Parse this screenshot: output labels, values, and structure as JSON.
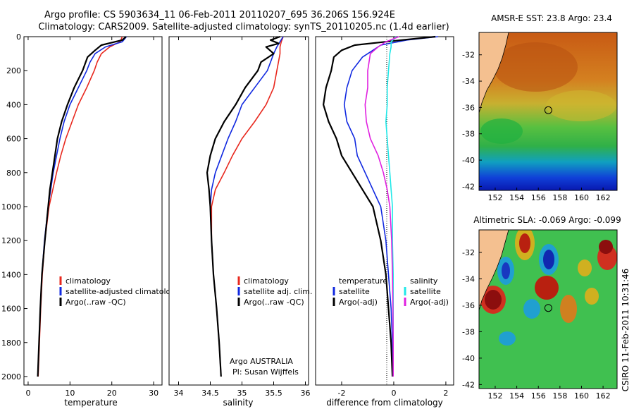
{
  "header": {
    "line1": "Argo profile: CS 5903634_11 06-Feb-2011 20110207_695 36.206S 156.924E",
    "line2": "Climatology: CARS2009. Satellite-adjusted climatology: synTS_20110205.nc (1.4d earlier)"
  },
  "side_text": "CSIRO 11-Feb-2011 10:31:46",
  "colors": {
    "climatology": "#e8281e",
    "satellite_adjusted": "#1028e0",
    "argo": "#000000",
    "salinity_satellite": "#20e8e8",
    "salinity_argo_adj": "#e020e0",
    "land": "#f4c090"
  },
  "chart_data": [
    {
      "type": "line",
      "id": "temperature",
      "xlabel": "temperature",
      "ylabel": "",
      "xlim": [
        -1,
        32
      ],
      "ylim": [
        2050,
        0
      ],
      "xticks": [
        0,
        10,
        20,
        30
      ],
      "yticks": [
        0,
        200,
        400,
        600,
        800,
        1000,
        1200,
        1400,
        1600,
        1800,
        2000
      ],
      "legend": [
        "climatology",
        "satellite-adjusted climatology",
        "Argo(..raw -QC)"
      ],
      "series": [
        {
          "name": "climatology",
          "color": "#e8281e",
          "depth": [
            0,
            30,
            60,
            100,
            150,
            200,
            300,
            400,
            500,
            600,
            700,
            800,
            1000,
            1200,
            1400,
            1600,
            1800,
            2000
          ],
          "values": [
            22.5,
            22.0,
            19.5,
            17.5,
            16.5,
            15.8,
            14.0,
            12.0,
            10.5,
            9.0,
            7.8,
            6.8,
            5.0,
            4.0,
            3.4,
            3.0,
            2.7,
            2.4
          ]
        },
        {
          "name": "satellite-adjusted climatology",
          "color": "#1028e0",
          "depth": [
            0,
            30,
            60,
            100,
            150,
            200,
            300,
            400,
            500,
            600,
            700,
            800,
            1000,
            1200,
            1400,
            1600,
            1800,
            2000
          ],
          "values": [
            23.5,
            22.5,
            18.5,
            16.0,
            14.8,
            14.0,
            12.0,
            10.0,
            8.6,
            7.6,
            6.8,
            6.0,
            4.8,
            3.9,
            3.3,
            2.9,
            2.6,
            2.3
          ]
        },
        {
          "name": "Argo(..raw -QC)",
          "color": "#000000",
          "depth": [
            0,
            20,
            50,
            80,
            120,
            200,
            300,
            400,
            500,
            600,
            700,
            800,
            900,
            1000,
            1200,
            1400,
            1600,
            1800,
            2000
          ],
          "values": [
            23.4,
            22.5,
            17.5,
            16.0,
            14.2,
            13.0,
            11.0,
            9.4,
            8.0,
            7.0,
            6.4,
            5.8,
            5.2,
            4.8,
            4.0,
            3.3,
            2.9,
            2.6,
            2.3
          ]
        }
      ]
    },
    {
      "type": "line",
      "id": "salinity",
      "xlabel": "salinity",
      "ylabel": "",
      "xlim": [
        33.85,
        36.05
      ],
      "ylim": [
        2050,
        0
      ],
      "xticks": [
        34,
        34.5,
        35,
        35.5,
        36
      ],
      "legend": [
        "climatology",
        "satellite adj. clim.",
        "Argo(..raw -QC)"
      ],
      "annotations": [
        "Argo AUSTRALIA",
        "PI: Susan Wijffels"
      ],
      "series": [
        {
          "name": "climatology",
          "color": "#e8281e",
          "depth": [
            0,
            30,
            60,
            100,
            200,
            300,
            400,
            500,
            600,
            700,
            800,
            900,
            1000,
            1200,
            1400,
            1600,
            1800,
            2000
          ],
          "values": [
            35.65,
            35.62,
            35.6,
            35.6,
            35.55,
            35.5,
            35.38,
            35.2,
            35.0,
            34.85,
            34.72,
            34.58,
            34.52,
            34.52,
            34.55,
            34.6,
            34.64,
            34.67
          ]
        },
        {
          "name": "satellite adj. clim.",
          "color": "#1028e0",
          "depth": [
            0,
            30,
            60,
            100,
            200,
            300,
            400,
            500,
            600,
            700,
            800,
            900,
            1000,
            1200,
            1400,
            1600,
            1800,
            2000
          ],
          "values": [
            35.65,
            35.6,
            35.55,
            35.5,
            35.4,
            35.2,
            35.0,
            34.9,
            34.78,
            34.68,
            34.58,
            34.52,
            34.5,
            34.52,
            34.55,
            34.6,
            34.64,
            34.67
          ]
        },
        {
          "name": "Argo(..raw -QC)",
          "color": "#000000",
          "depth": [
            0,
            20,
            40,
            60,
            100,
            150,
            200,
            300,
            400,
            500,
            600,
            700,
            800,
            900,
            1000,
            1200,
            1400,
            1600,
            1800,
            2000
          ],
          "values": [
            35.6,
            35.45,
            35.58,
            35.38,
            35.5,
            35.3,
            35.25,
            35.05,
            34.9,
            34.72,
            34.58,
            34.5,
            34.45,
            34.48,
            34.5,
            34.52,
            34.55,
            34.6,
            34.64,
            34.67
          ]
        }
      ]
    },
    {
      "type": "line",
      "id": "difference",
      "xlabel": "difference from climatology",
      "ylabel": "",
      "xlim": [
        -3.0,
        2.3
      ],
      "ylim": [
        2050,
        0
      ],
      "xticks": [
        -2,
        0,
        2
      ],
      "legend_temperature_title": "temperature",
      "legend_salinity_title": "salinity",
      "legend": [
        "satellite",
        "Argo(-adj)",
        "satellite",
        "Argo(-adj)"
      ],
      "series": [
        {
          "name": "temperature satellite",
          "color": "#1028e0",
          "depth": [
            0,
            20,
            50,
            80,
            120,
            200,
            300,
            400,
            500,
            600,
            700,
            800,
            900,
            1000,
            1200,
            1400,
            1600,
            1800,
            2000
          ],
          "values": [
            1.7,
            0.5,
            -0.5,
            -0.8,
            -1.2,
            -1.6,
            -1.8,
            -1.9,
            -1.8,
            -1.5,
            -1.4,
            -1.1,
            -0.8,
            -0.5,
            -0.3,
            -0.2,
            -0.1,
            -0.05,
            -0.05
          ]
        },
        {
          "name": "temperature Argo(-adj)",
          "color": "#000000",
          "depth": [
            0,
            20,
            50,
            80,
            120,
            200,
            300,
            400,
            500,
            600,
            700,
            800,
            900,
            1000,
            1200,
            1400,
            1600,
            1800,
            2000
          ],
          "values": [
            1.6,
            0.3,
            -1.5,
            -2.0,
            -2.3,
            -2.4,
            -2.6,
            -2.7,
            -2.5,
            -2.2,
            -2.0,
            -1.6,
            -1.2,
            -0.8,
            -0.5,
            -0.3,
            -0.2,
            -0.1,
            -0.05
          ]
        },
        {
          "name": "salinity satellite",
          "color": "#20e8e8",
          "depth": [
            0,
            30,
            60,
            100,
            200,
            300,
            400,
            500,
            600,
            700,
            800,
            900,
            1000,
            1200,
            1400,
            1600,
            1800,
            2000
          ],
          "values": [
            0.1,
            -0.1,
            -0.1,
            -0.15,
            -0.2,
            -0.25,
            -0.25,
            -0.3,
            -0.25,
            -0.2,
            -0.15,
            -0.1,
            -0.05,
            -0.05,
            -0.02,
            -0.02,
            -0.02,
            -0.02
          ]
        },
        {
          "name": "salinity Argo(-adj)",
          "color": "#e020e0",
          "depth": [
            0,
            30,
            60,
            100,
            200,
            300,
            400,
            500,
            600,
            700,
            800,
            900,
            1000,
            1200,
            1400,
            1600,
            1800,
            2000
          ],
          "values": [
            0.2,
            -0.3,
            -0.6,
            -0.9,
            -1.0,
            -1.0,
            -1.1,
            -1.05,
            -0.9,
            -0.6,
            -0.4,
            -0.25,
            -0.15,
            -0.08,
            -0.05,
            -0.03,
            -0.02,
            -0.02
          ]
        }
      ]
    },
    {
      "type": "heatmap",
      "id": "sst_map",
      "title": "AMSR-E SST: 23.8  Argo: 23.4",
      "xlim": [
        150.5,
        163.3
      ],
      "ylim": [
        -42.3,
        -30.3
      ],
      "xticks": [
        152,
        154,
        156,
        158,
        160,
        162
      ],
      "yticks": [
        -32,
        -34,
        -36,
        -38,
        -40,
        -42
      ],
      "marker": {
        "lon": 156.924,
        "lat": -36.206
      }
    },
    {
      "type": "heatmap",
      "id": "sla_map",
      "title": "Altimetric SLA: -0.069  Argo: -0.099",
      "xlim": [
        150.5,
        163.3
      ],
      "ylim": [
        -42.3,
        -30.3
      ],
      "xticks": [
        152,
        154,
        156,
        158,
        160,
        162
      ],
      "yticks": [
        -32,
        -34,
        -36,
        -38,
        -40,
        -42
      ],
      "marker": {
        "lon": 156.924,
        "lat": -36.206
      }
    }
  ]
}
